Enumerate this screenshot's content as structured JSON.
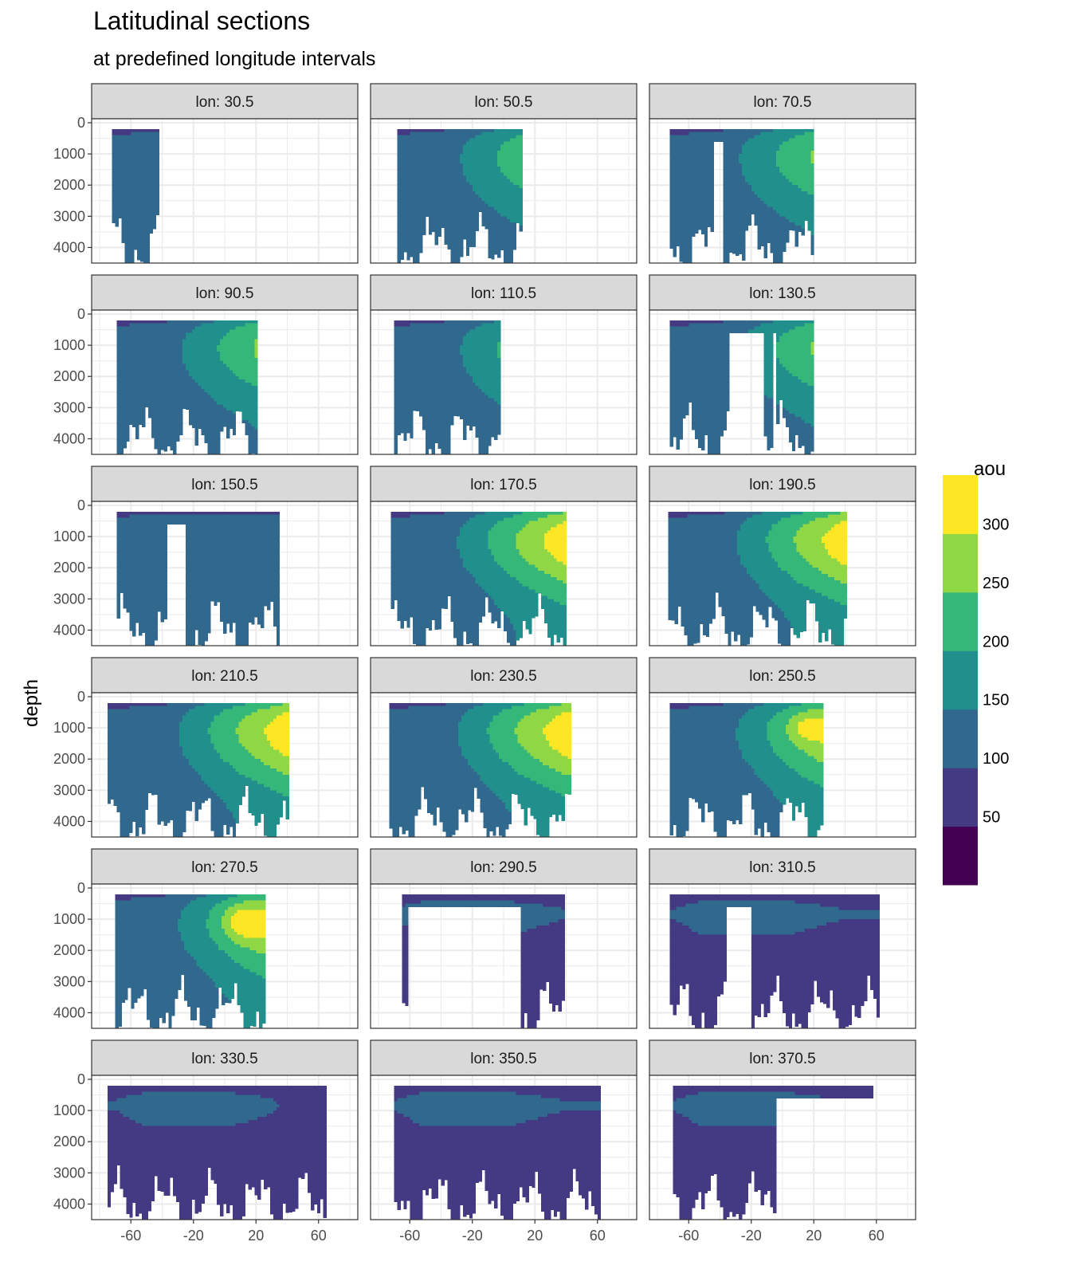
{
  "chart_data": {
    "type": "heatmap",
    "subtype": "faceted filled contour sections",
    "title": "Latitudinal sections",
    "subtitle": "at predefined longitude intervals",
    "ylabel": "depth",
    "xlabel": "",
    "facet_label_prefix": "lon: ",
    "facets": [
      "30.5",
      "50.5",
      "70.5",
      "90.5",
      "110.5",
      "130.5",
      "150.5",
      "170.5",
      "190.5",
      "210.5",
      "230.5",
      "250.5",
      "270.5",
      "290.5",
      "310.5",
      "330.5",
      "350.5",
      "370.5"
    ],
    "x_ticks": [
      "-60",
      "-20",
      "20",
      "60"
    ],
    "y_ticks": [
      "0",
      "1000",
      "2000",
      "3000",
      "4000"
    ],
    "y_reversed": true,
    "xlim": [
      -80,
      80
    ],
    "ylim": [
      0,
      4500
    ],
    "grid": true,
    "legend": {
      "title": "aou",
      "placement": "right",
      "breaks": [
        "50",
        "100",
        "150",
        "200",
        "250",
        "300"
      ],
      "bins": [
        {
          "range": [
            0,
            50
          ],
          "color": "#440154"
        },
        {
          "range": [
            50,
            100
          ],
          "color": "#443A83"
        },
        {
          "range": [
            100,
            150
          ],
          "color": "#31688E"
        },
        {
          "range": [
            150,
            200
          ],
          "color": "#21908C"
        },
        {
          "range": [
            200,
            250
          ],
          "color": "#35B779"
        },
        {
          "range": [
            250,
            300
          ],
          "color": "#8FD744"
        },
        {
          "range": [
            300,
            350
          ],
          "color": "#FDE725"
        }
      ]
    }
  }
}
